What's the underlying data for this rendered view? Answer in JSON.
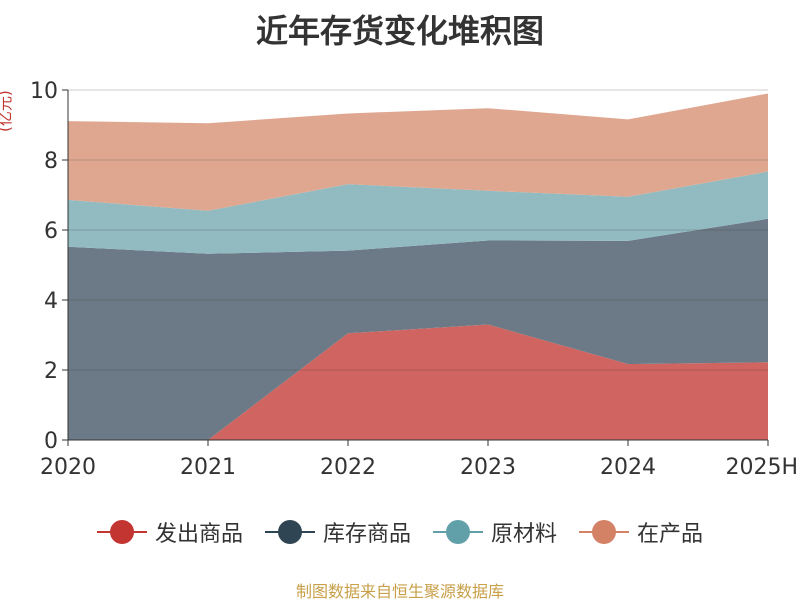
{
  "header": {
    "title": "近年存货变化堆积图"
  },
  "unit_label": "(亿元)",
  "source_label": "制图数据来自恒生聚源数据库",
  "chart_data": {
    "type": "area",
    "stacked": true,
    "title": "近年存货变化堆积图",
    "ylabel": "(亿元)",
    "xlabel": "",
    "categories": [
      "2020",
      "2021",
      "2022",
      "2023",
      "2024",
      "2025H"
    ],
    "ylim": [
      0,
      10
    ],
    "yticks": [
      0,
      2,
      4,
      6,
      8,
      10
    ],
    "grid": true,
    "legend_position": "bottom",
    "series": [
      {
        "name": "发出商品",
        "values": [
          0,
          0,
          3.05,
          3.3,
          2.17,
          2.22
        ],
        "color": "#d06460",
        "legend_color": "#c23531"
      },
      {
        "name": "库存商品",
        "values": [
          5.52,
          5.32,
          2.36,
          2.4,
          3.52,
          4.1
        ],
        "color": "#6b7a86",
        "legend_color": "#2f4554"
      },
      {
        "name": "原材料",
        "values": [
          1.34,
          1.23,
          1.9,
          1.42,
          1.26,
          1.35
        ],
        "color": "#92bbc1",
        "legend_color": "#61a0a8"
      },
      {
        "name": "在产品",
        "values": [
          2.25,
          2.5,
          2.02,
          2.36,
          2.21,
          2.23
        ],
        "color": "#dfa790",
        "legend_color": "#d48265"
      }
    ]
  }
}
